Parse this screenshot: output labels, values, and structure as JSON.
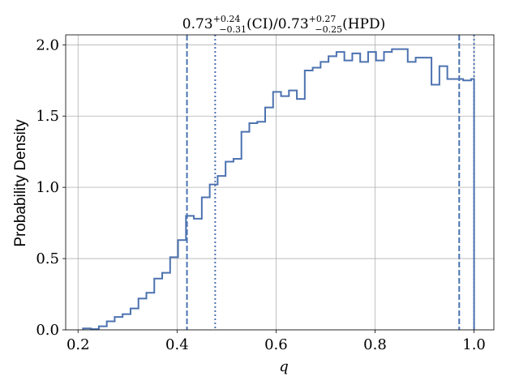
{
  "chart_data": {
    "type": "histogram",
    "title": {
      "median": "0.73",
      "ci_plus": "+0.24",
      "ci_minus": "−0.31",
      "ci_tag": "(CI)",
      "sep": "/",
      "hpd_median": "0.73",
      "hpd_plus": "+0.27",
      "hpd_minus": "−0.25",
      "hpd_tag": "(HPD)"
    },
    "xlabel": "q",
    "ylabel": "Probability Density",
    "xlim": [
      0.175,
      1.04
    ],
    "ylim": [
      0.0,
      2.07
    ],
    "xticks": [
      "0.2",
      "0.4",
      "0.6",
      "0.8",
      "1.0"
    ],
    "yticks": [
      "0.0",
      "0.5",
      "1.0",
      "1.5",
      "2.0"
    ],
    "grid": true,
    "bin_edges": [
      0.21,
      0.226,
      0.242,
      0.258,
      0.274,
      0.29,
      0.306,
      0.322,
      0.338,
      0.354,
      0.37,
      0.386,
      0.402,
      0.418,
      0.434,
      0.45,
      0.466,
      0.482,
      0.498,
      0.514,
      0.53,
      0.546,
      0.562,
      0.578,
      0.594,
      0.61,
      0.626,
      0.642,
      0.658,
      0.674,
      0.69,
      0.706,
      0.722,
      0.738,
      0.754,
      0.77,
      0.786,
      0.802,
      0.818,
      0.834,
      0.85,
      0.866,
      0.882,
      0.898,
      0.914,
      0.93,
      0.946,
      0.962,
      0.978,
      0.994,
      1.0
    ],
    "densities": [
      0.01,
      0.005,
      0.025,
      0.06,
      0.09,
      0.11,
      0.15,
      0.22,
      0.26,
      0.36,
      0.4,
      0.51,
      0.63,
      0.8,
      0.78,
      0.93,
      1.02,
      1.08,
      1.18,
      1.2,
      1.39,
      1.45,
      1.46,
      1.56,
      1.67,
      1.64,
      1.68,
      1.62,
      1.82,
      1.84,
      1.88,
      1.92,
      1.95,
      1.89,
      1.94,
      1.88,
      1.95,
      1.89,
      1.95,
      1.97,
      1.97,
      1.88,
      1.91,
      1.91,
      1.72,
      1.85,
      1.76,
      1.76,
      1.75,
      1.76
    ],
    "ci_lines": [
      0.42,
      0.97
    ],
    "hpd_lines": [
      0.477,
      1.0
    ],
    "line_color": "#4c72b0"
  }
}
